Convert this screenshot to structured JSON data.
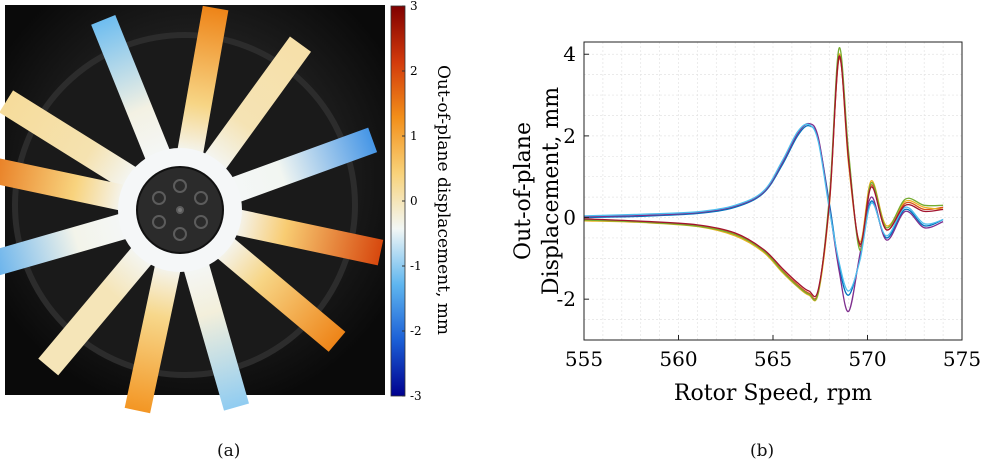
{
  "panel_a": {
    "caption": "(a)",
    "colorbar": {
      "label": "Out-of-plane displacement, mm",
      "ticks": [
        "3",
        "2",
        "1",
        "0",
        "-1",
        "-2",
        "-3"
      ],
      "range": [
        -3,
        3
      ],
      "colormap": [
        "#00008f",
        "#1b5fd6",
        "#5fb6ef",
        "#f2f7f5",
        "#f8d27a",
        "#f28f1a",
        "#d23a0c",
        "#800000"
      ]
    },
    "blades": [
      {
        "angle_deg": -12,
        "tip_value": 2.0
      },
      {
        "angle_deg": 20,
        "tip_value": -1.6
      },
      {
        "angle_deg": 54,
        "tip_value": 0.1
      },
      {
        "angle_deg": 80,
        "tip_value": 1.4
      },
      {
        "angle_deg": 112,
        "tip_value": -1.2
      },
      {
        "angle_deg": 148,
        "tip_value": 0.2
      },
      {
        "angle_deg": 168,
        "tip_value": 1.6
      },
      {
        "angle_deg": 196,
        "tip_value": -1.4
      },
      {
        "angle_deg": 230,
        "tip_value": 0.0
      },
      {
        "angle_deg": 258,
        "tip_value": 1.2
      },
      {
        "angle_deg": 286,
        "tip_value": -1.0
      },
      {
        "angle_deg": 320,
        "tip_value": 1.4
      }
    ]
  },
  "panel_b": {
    "caption": "(b)",
    "chart_data": {
      "type": "line",
      "xlabel": "Rotor Speed, rpm",
      "ylabel_line1": "Out-of-plane",
      "ylabel_line2": "Displacement, mm",
      "xlim": [
        555,
        575
      ],
      "ylim": [
        -3,
        4.3
      ],
      "xticks": [
        "555",
        "560",
        "565",
        "570",
        "575"
      ],
      "yticks": [
        "-2",
        "0",
        "2",
        "4"
      ],
      "grid": true,
      "series": [
        {
          "color": "#0072bd",
          "x": [
            555,
            558,
            561,
            563,
            564.5,
            565.5,
            566.3,
            566.9,
            567.4,
            568.0,
            568.5,
            569.0,
            569.6,
            570.2,
            571,
            572,
            573,
            574
          ],
          "y": [
            0.0,
            0.03,
            0.1,
            0.25,
            0.6,
            1.3,
            2.0,
            2.25,
            1.9,
            0.3,
            -1.2,
            -1.9,
            -1.0,
            0.4,
            -0.5,
            0.2,
            -0.2,
            -0.05
          ]
        },
        {
          "color": "#d95319",
          "x": [
            555,
            558,
            561,
            563,
            564.5,
            565.5,
            566.3,
            566.9,
            567.4,
            568.0,
            568.5,
            569.0,
            569.6,
            570.2,
            571,
            572,
            573,
            574
          ],
          "y": [
            -0.05,
            -0.1,
            -0.2,
            -0.4,
            -0.8,
            -1.3,
            -1.65,
            -1.85,
            -1.8,
            0.5,
            3.9,
            1.5,
            -0.7,
            0.8,
            -0.3,
            0.35,
            0.2,
            0.25
          ]
        },
        {
          "color": "#edb120",
          "x": [
            555,
            558,
            561,
            563,
            564.5,
            565.5,
            566.3,
            566.9,
            567.4,
            568.0,
            568.5,
            569.0,
            569.6,
            570.2,
            571,
            572,
            573,
            574
          ],
          "y": [
            -0.08,
            -0.12,
            -0.22,
            -0.45,
            -0.85,
            -1.35,
            -1.7,
            -1.9,
            -1.85,
            0.4,
            4.0,
            1.3,
            -0.6,
            0.9,
            -0.2,
            0.4,
            0.25,
            0.2
          ]
        },
        {
          "color": "#7e2f8e",
          "x": [
            555,
            558,
            561,
            563,
            564.5,
            565.5,
            566.3,
            566.9,
            567.4,
            568.0,
            568.5,
            569.0,
            569.6,
            570.2,
            571,
            572,
            573,
            574
          ],
          "y": [
            0.02,
            0.05,
            0.12,
            0.28,
            0.62,
            1.35,
            2.05,
            2.3,
            1.95,
            0.2,
            -1.3,
            -2.3,
            -0.9,
            0.5,
            -0.55,
            0.15,
            -0.25,
            -0.1
          ]
        },
        {
          "color": "#77ac30",
          "x": [
            555,
            558,
            561,
            563,
            564.5,
            565.5,
            566.3,
            566.9,
            567.4,
            568.0,
            568.5,
            569.0,
            569.6,
            570.2,
            571,
            572,
            573,
            574
          ],
          "y": [
            -0.06,
            -0.11,
            -0.21,
            -0.42,
            -0.82,
            -1.32,
            -1.68,
            -1.88,
            -1.82,
            0.6,
            4.15,
            1.6,
            -0.8,
            0.85,
            -0.25,
            0.45,
            0.3,
            0.3
          ]
        },
        {
          "color": "#4dbeee",
          "x": [
            555,
            558,
            561,
            563,
            564.5,
            565.5,
            566.3,
            566.9,
            567.4,
            568.0,
            568.5,
            569.0,
            569.6,
            570.2,
            571,
            572,
            573,
            574
          ],
          "y": [
            0.04,
            0.08,
            0.14,
            0.3,
            0.65,
            1.4,
            2.1,
            2.28,
            1.85,
            0.15,
            -1.1,
            -1.8,
            -1.05,
            0.35,
            -0.45,
            0.25,
            -0.15,
            -0.05
          ]
        },
        {
          "color": "#a2142f",
          "x": [
            555,
            558,
            561,
            563,
            564.5,
            565.5,
            566.3,
            566.9,
            567.4,
            568.0,
            568.5,
            569.0,
            569.6,
            570.2,
            571,
            572,
            573,
            574
          ],
          "y": [
            -0.03,
            -0.09,
            -0.18,
            -0.38,
            -0.78,
            -1.25,
            -1.6,
            -1.8,
            -1.75,
            0.45,
            3.95,
            1.4,
            -0.65,
            0.75,
            -0.3,
            0.3,
            0.15,
            0.2
          ]
        }
      ]
    }
  }
}
